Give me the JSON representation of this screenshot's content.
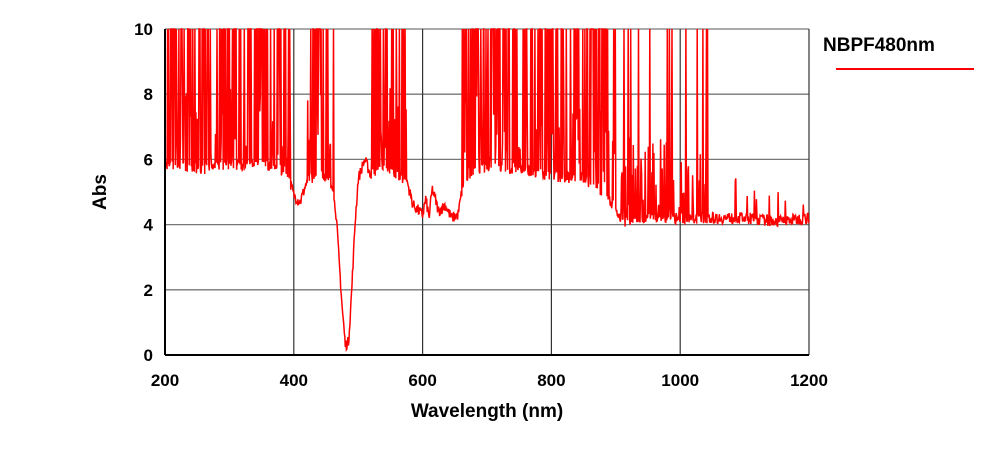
{
  "chart_data": {
    "type": "line",
    "xlabel": "Wavelength (nm)",
    "ylabel": "Abs",
    "xlim": [
      200,
      1200
    ],
    "ylim": [
      0,
      10
    ],
    "xticks": [
      200,
      400,
      600,
      800,
      1000,
      1200
    ],
    "yticks": [
      0,
      2,
      4,
      6,
      8,
      10
    ],
    "grid": true,
    "legend_position": "top-right",
    "series": [
      {
        "name": "NBPF480nm",
        "color": "#ff0000",
        "baseline": [
          [
            200,
            5.8
          ],
          [
            250,
            5.7
          ],
          [
            300,
            5.8
          ],
          [
            350,
            5.9
          ],
          [
            390,
            5.6
          ],
          [
            400,
            4.9
          ],
          [
            410,
            4.7
          ],
          [
            420,
            5.3
          ],
          [
            440,
            5.6
          ],
          [
            455,
            5.4
          ],
          [
            465,
            4.5
          ],
          [
            470,
            3.0
          ],
          [
            475,
            1.5
          ],
          [
            480,
            0.3
          ],
          [
            485,
            0.4
          ],
          [
            490,
            2.0
          ],
          [
            495,
            4.0
          ],
          [
            500,
            5.4
          ],
          [
            510,
            6.0
          ],
          [
            520,
            5.5
          ],
          [
            540,
            5.9
          ],
          [
            560,
            5.5
          ],
          [
            575,
            5.4
          ],
          [
            585,
            4.6
          ],
          [
            600,
            4.3
          ],
          [
            605,
            4.8
          ],
          [
            610,
            4.2
          ],
          [
            615,
            5.1
          ],
          [
            625,
            4.4
          ],
          [
            635,
            4.6
          ],
          [
            645,
            4.2
          ],
          [
            655,
            4.3
          ],
          [
            665,
            5.5
          ],
          [
            700,
            5.8
          ],
          [
            750,
            5.7
          ],
          [
            800,
            5.5
          ],
          [
            850,
            5.4
          ],
          [
            880,
            5.0
          ],
          [
            900,
            4.5
          ],
          [
            910,
            4.1
          ],
          [
            950,
            4.2
          ],
          [
            1000,
            4.2
          ],
          [
            1050,
            4.2
          ],
          [
            1100,
            4.2
          ],
          [
            1150,
            4.1
          ],
          [
            1200,
            4.2
          ]
        ],
        "saturated_ranges_nm": [
          [
            200,
            395
          ],
          [
            420,
            462
          ],
          [
            520,
            575
          ],
          [
            660,
            900
          ],
          [
            900,
            1045
          ]
        ]
      }
    ]
  }
}
